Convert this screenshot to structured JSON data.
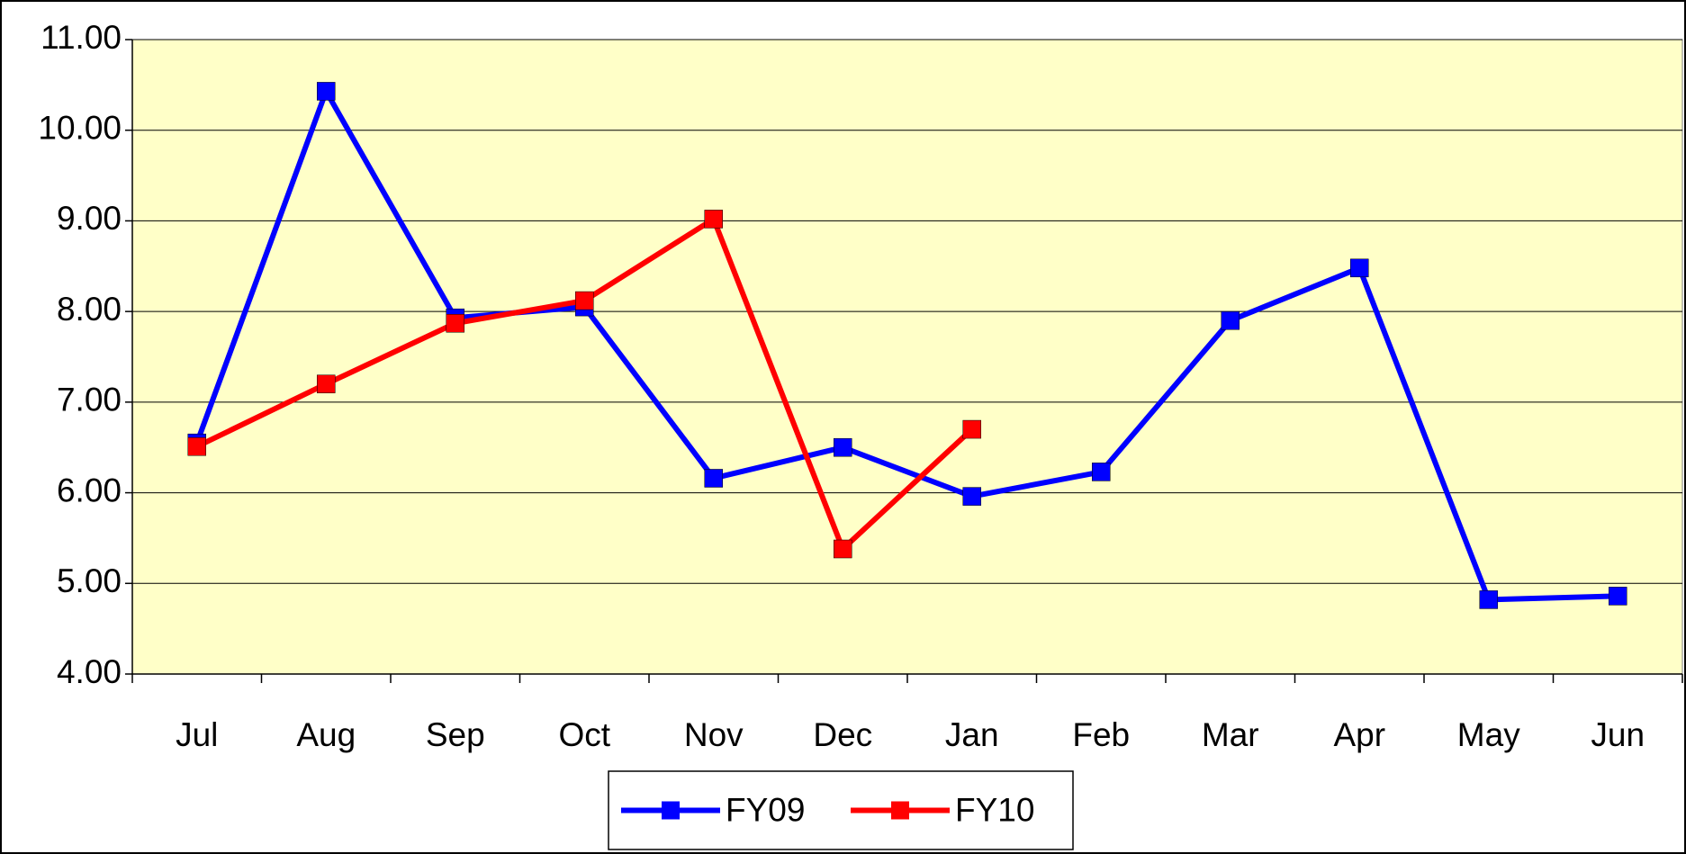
{
  "chart_data": {
    "type": "line",
    "categories": [
      "Jul",
      "Aug",
      "Sep",
      "Oct",
      "Nov",
      "Dec",
      "Jan",
      "Feb",
      "Mar",
      "Apr",
      "May",
      "Jun"
    ],
    "series": [
      {
        "name": "FY09",
        "color": "#0000ff",
        "values": [
          6.55,
          10.43,
          7.93,
          8.05,
          6.16,
          6.5,
          5.96,
          6.23,
          7.9,
          8.48,
          4.82,
          4.86
        ]
      },
      {
        "name": "FY10",
        "color": "#ff0000",
        "values": [
          6.51,
          7.2,
          7.87,
          8.12,
          9.02,
          5.38,
          6.7,
          null,
          null,
          null,
          null,
          null
        ]
      }
    ],
    "ylim": [
      4,
      11
    ],
    "yticks": [
      {
        "value": 4,
        "label": "4.00"
      },
      {
        "value": 5,
        "label": "5.00"
      },
      {
        "value": 6,
        "label": "6.00"
      },
      {
        "value": 7,
        "label": "7.00"
      },
      {
        "value": 8,
        "label": "8.00"
      },
      {
        "value": 9,
        "label": "9.00"
      },
      {
        "value": 10,
        "label": "10.00"
      },
      {
        "value": 11,
        "label": "11.00"
      }
    ],
    "grid": true,
    "legend": "bottom",
    "plot_background": "#ffffc8"
  }
}
